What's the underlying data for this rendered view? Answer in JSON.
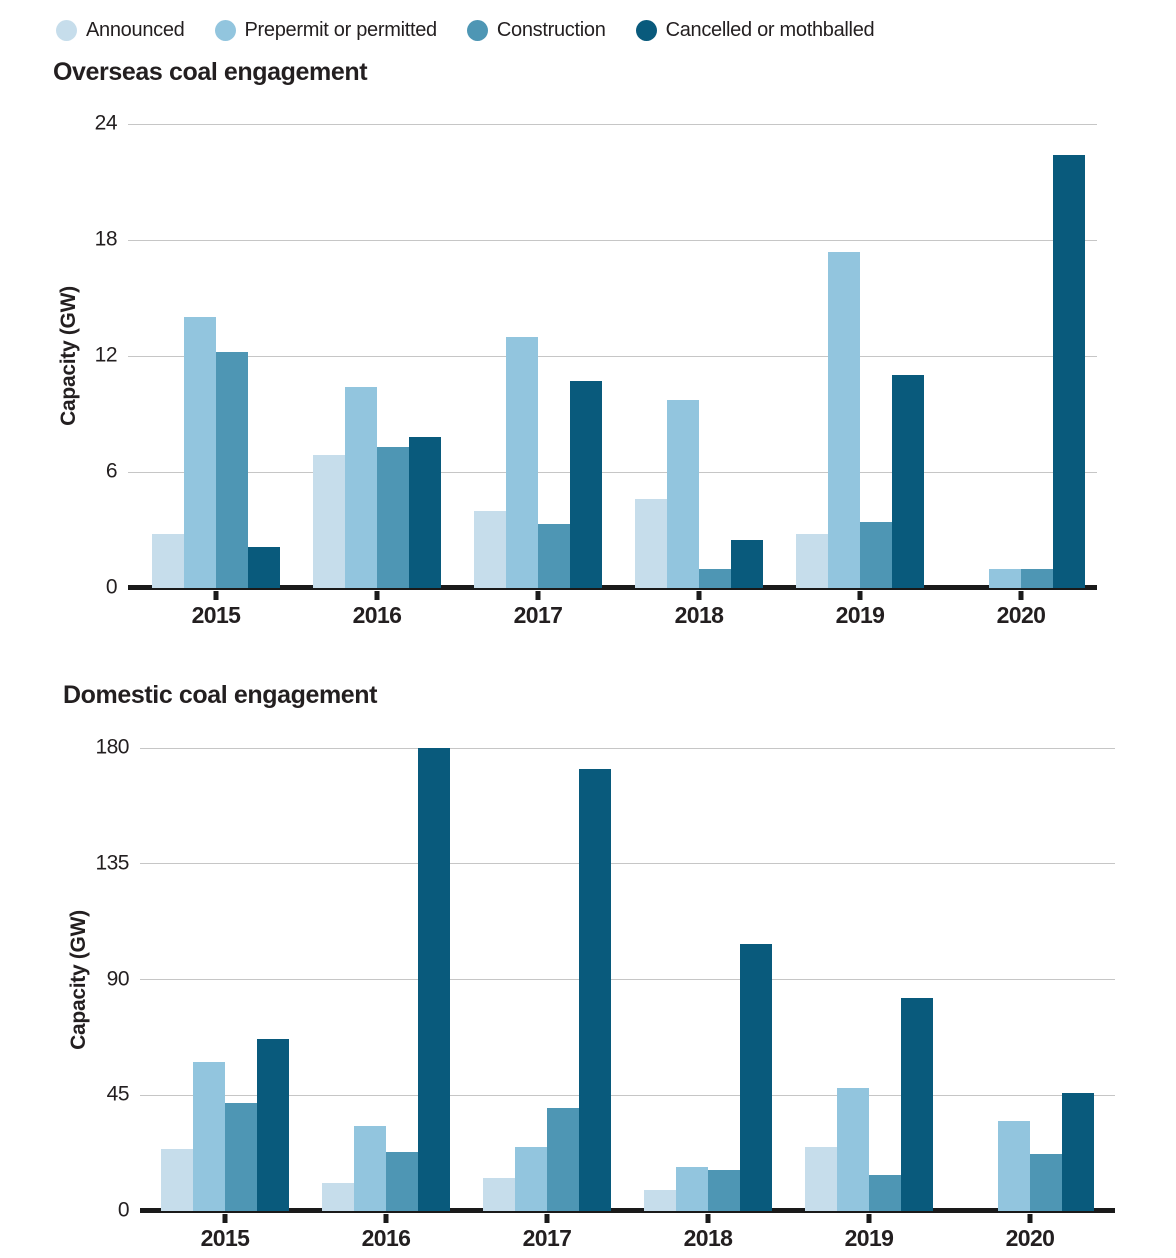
{
  "legend": {
    "items": [
      {
        "label": "Announced",
        "color": "#c6ddeb"
      },
      {
        "label": "Prepermit or permitted",
        "color": "#92c5de"
      },
      {
        "label": "Construction",
        "color": "#4e96b4"
      },
      {
        "label": "Cancelled or mothballed",
        "color": "#095a7c"
      }
    ]
  },
  "chart_data": [
    {
      "type": "bar",
      "title": "Overseas coal engagement",
      "xlabel": "",
      "ylabel": "Capacity (GW)",
      "ylim": [
        0,
        24
      ],
      "yticks": [
        24,
        18,
        12,
        6,
        0
      ],
      "grid": true,
      "legend_position": "top",
      "categories": [
        "2015",
        "2016",
        "2017",
        "2018",
        "2019",
        "2020"
      ],
      "series": [
        {
          "name": "Announced",
          "color": "#c6ddeb",
          "values": [
            2.8,
            6.9,
            4.0,
            4.6,
            2.8,
            0
          ]
        },
        {
          "name": "Prepermit or permitted",
          "color": "#92c5de",
          "values": [
            14.0,
            10.4,
            13.0,
            9.7,
            17.4,
            1.0
          ]
        },
        {
          "name": "Construction",
          "color": "#4e96b4",
          "values": [
            12.2,
            7.3,
            3.3,
            1.0,
            3.4,
            1.0
          ]
        },
        {
          "name": "Cancelled or mothballed",
          "color": "#095a7c",
          "values": [
            2.1,
            7.8,
            10.7,
            2.5,
            11.0,
            22.4
          ]
        }
      ]
    },
    {
      "type": "bar",
      "title": "Domestic coal engagement",
      "xlabel": "",
      "ylabel": "Capacity (GW)",
      "ylim": [
        0,
        180
      ],
      "yticks": [
        180,
        135,
        90,
        45,
        0
      ],
      "grid": true,
      "legend_position": "top",
      "categories": [
        "2015",
        "2016",
        "2017",
        "2018",
        "2019",
        "2020"
      ],
      "series": [
        {
          "name": "Announced",
          "color": "#c6ddeb",
          "values": [
            24,
            11,
            13,
            8,
            25,
            0
          ]
        },
        {
          "name": "Prepermit or permitted",
          "color": "#92c5de",
          "values": [
            58,
            33,
            25,
            17,
            48,
            35
          ]
        },
        {
          "name": "Construction",
          "color": "#4e96b4",
          "values": [
            42,
            23,
            40,
            16,
            14,
            22
          ]
        },
        {
          "name": "Cancelled or mothballed",
          "color": "#095a7c",
          "values": [
            67,
            180,
            172,
            104,
            83,
            46
          ]
        }
      ]
    }
  ]
}
